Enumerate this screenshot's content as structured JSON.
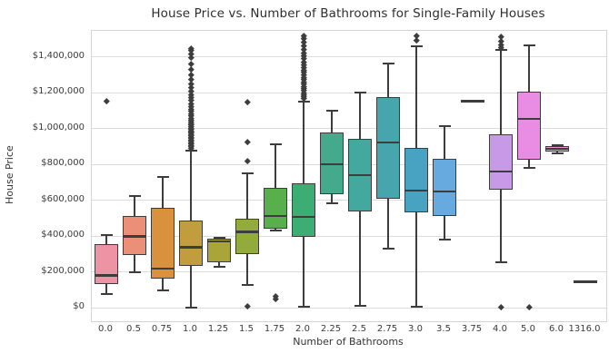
{
  "figure": {
    "title": "House Price vs. Number of Bathrooms for Single-Family Houses"
  },
  "chart_data": {
    "type": "box",
    "title": "House Price vs. Number of Bathrooms for Single-Family Houses",
    "xlabel": "Number of Bathrooms",
    "ylabel": "House Price",
    "grid": "horizontal",
    "legend": false,
    "ylim": [
      -76000,
      1547000
    ],
    "yticks": [
      {
        "value": 0,
        "label": "$0"
      },
      {
        "value": 200000,
        "label": "$200,000"
      },
      {
        "value": 400000,
        "label": "$400,000"
      },
      {
        "value": 600000,
        "label": "$600,000"
      },
      {
        "value": 800000,
        "label": "$800,000"
      },
      {
        "value": 1000000,
        "label": "$1,000,000"
      },
      {
        "value": 1200000,
        "label": "$1,200,000"
      },
      {
        "value": 1400000,
        "label": "$1,400,000"
      }
    ],
    "categories": [
      "0.0",
      "0.5",
      "0.75",
      "1.0",
      "1.25",
      "1.5",
      "1.75",
      "2.0",
      "2.25",
      "2.5",
      "2.75",
      "3.0",
      "3.5",
      "3.75",
      "4.0",
      "5.0",
      "6.0",
      "1316.0"
    ],
    "box_fill_colors": [
      "#ec93a4",
      "#ec8f78",
      "#da913e",
      "#c29d3d",
      "#aaa538",
      "#92ab3a",
      "#57b04b",
      "#3cae74",
      "#45aa8c",
      "#43a89e",
      "#47a5ad",
      "#48a2c2",
      "#67aadf",
      "#9f9fe0",
      "#c79ae8",
      "#e98ce3",
      "#ee90d0",
      "#ef94af"
    ],
    "edge_color": "#3d3d3d",
    "boxes": [
      {
        "category": "0.0",
        "whisker_low": 78000,
        "q1": 133000,
        "median": 180000,
        "q3": 355000,
        "whisker_high": 405000,
        "outliers": [
          1155000
        ]
      },
      {
        "category": "0.5",
        "whisker_low": 196000,
        "q1": 294000,
        "median": 398000,
        "q3": 513000,
        "whisker_high": 622000,
        "outliers": []
      },
      {
        "category": "0.75",
        "whisker_low": 95000,
        "q1": 162000,
        "median": 218000,
        "q3": 556000,
        "whisker_high": 730000,
        "outliers": []
      },
      {
        "category": "1.0",
        "whisker_low": 2000,
        "q1": 232000,
        "median": 337000,
        "q3": 489000,
        "whisker_high": 880000,
        "outliers": [
          890000,
          900000,
          908000,
          915000,
          922000,
          930000,
          938000,
          945000,
          952000,
          960000,
          968000,
          975000,
          983000,
          990000,
          998000,
          1005000,
          1013000,
          1021000,
          1030000,
          1040000,
          1050000,
          1061000,
          1072000,
          1084000,
          1097000,
          1111000,
          1126000,
          1142000,
          1158000,
          1174000,
          1192000,
          1210000,
          1230000,
          1252000,
          1275000,
          1300000,
          1330000,
          1362000,
          1398000,
          1420000,
          1437000,
          1450000
        ]
      },
      {
        "category": "1.25",
        "whisker_low": 230000,
        "q1": 255000,
        "median": 370000,
        "q3": 385000,
        "whisker_high": 392000,
        "outliers": []
      },
      {
        "category": "1.5",
        "whisker_low": 127000,
        "q1": 300000,
        "median": 424000,
        "q3": 497000,
        "whisker_high": 750000,
        "outliers": [
          1152000,
          925000,
          820000,
          9000
        ]
      },
      {
        "category": "1.75",
        "whisker_low": 433000,
        "q1": 441000,
        "median": 514000,
        "q3": 669000,
        "whisker_high": 914000,
        "outliers": [
          66000,
          49000
        ]
      },
      {
        "category": "2.0",
        "whisker_low": 7000,
        "q1": 396000,
        "median": 509000,
        "q3": 695000,
        "whisker_high": 1153000,
        "outliers": [
          1170000,
          1181000,
          1192000,
          1203000,
          1214000,
          1226000,
          1238000,
          1250000,
          1262000,
          1275000,
          1288000,
          1301000,
          1315000,
          1329000,
          1344000,
          1359000,
          1375000,
          1391000,
          1408000,
          1426000,
          1445000,
          1465000,
          1486000,
          1505000,
          1518000
        ]
      },
      {
        "category": "2.25",
        "whisker_low": 585000,
        "q1": 632000,
        "median": 801000,
        "q3": 979000,
        "whisker_high": 1102000,
        "outliers": []
      },
      {
        "category": "2.5",
        "whisker_low": 10000,
        "q1": 539000,
        "median": 740000,
        "q3": 945000,
        "whisker_high": 1204000,
        "outliers": []
      },
      {
        "category": "2.75",
        "whisker_low": 331000,
        "q1": 607000,
        "median": 923000,
        "q3": 1177000,
        "whisker_high": 1363000,
        "outliers": []
      },
      {
        "category": "3.0",
        "whisker_low": 7000,
        "q1": 531000,
        "median": 653000,
        "q3": 894000,
        "whisker_high": 1461000,
        "outliers": [
          1497000,
          1522000
        ]
      },
      {
        "category": "3.5",
        "whisker_low": 379000,
        "q1": 511000,
        "median": 650000,
        "q3": 831000,
        "whisker_high": 1012000,
        "outliers": []
      },
      {
        "category": "3.75",
        "whisker_low": 1154000,
        "q1": 1154000,
        "median": 1154000,
        "q3": 1154000,
        "whisker_high": 1154000,
        "outliers": []
      },
      {
        "category": "4.0",
        "whisker_low": 253000,
        "q1": 661000,
        "median": 759000,
        "q3": 970000,
        "whisker_high": 1438000,
        "outliers": [
          1452000,
          1470000,
          1490000,
          1515000,
          4000
        ]
      },
      {
        "category": "5.0",
        "whisker_low": 782000,
        "q1": 826000,
        "median": 1055000,
        "q3": 1207000,
        "whisker_high": 1467000,
        "outliers": [
          2000
        ]
      },
      {
        "category": "6.0",
        "whisker_low": 862000,
        "q1": 870000,
        "median": 888000,
        "q3": 902000,
        "whisker_high": 908000,
        "outliers": []
      },
      {
        "category": "1316.0",
        "whisker_low": 146000,
        "q1": 146000,
        "median": 146000,
        "q3": 146000,
        "whisker_high": 146000,
        "outliers": []
      }
    ]
  }
}
